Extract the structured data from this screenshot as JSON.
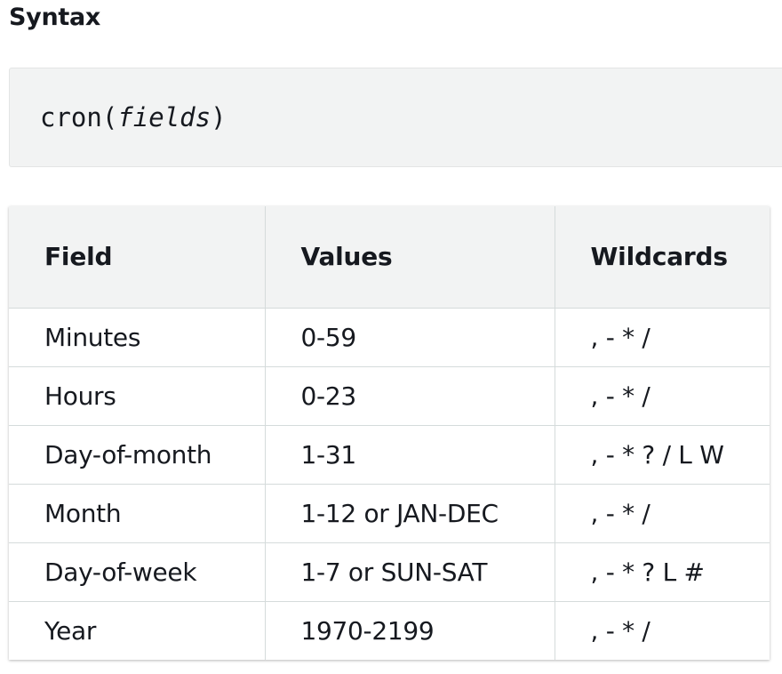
{
  "heading": "Syntax",
  "code": {
    "function_name": "cron(",
    "argument": "fields",
    "closing": ")"
  },
  "table": {
    "headers": [
      "Field",
      "Values",
      "Wildcards"
    ],
    "rows": [
      [
        "Minutes",
        "0-59",
        ", - * /"
      ],
      [
        "Hours",
        "0-23",
        ", - * /"
      ],
      [
        "Day-of-month",
        "1-31",
        ", - * ? / L W"
      ],
      [
        "Month",
        "1-12 or JAN-DEC",
        ", - * /"
      ],
      [
        "Day-of-week",
        "1-7 or SUN-SAT",
        ", - * ? L #"
      ],
      [
        "Year",
        "1970-2199",
        ", - * /"
      ]
    ]
  }
}
